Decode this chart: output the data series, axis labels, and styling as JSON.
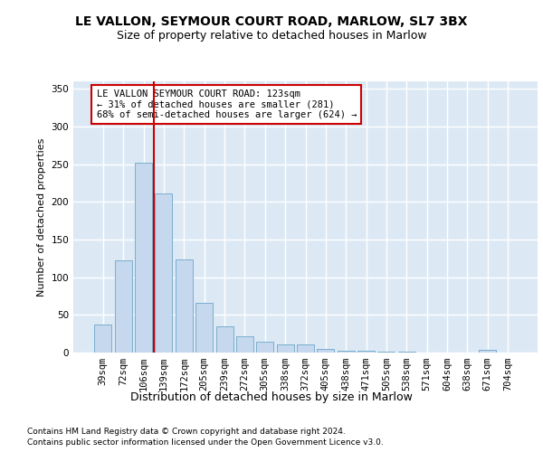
{
  "title1": "LE VALLON, SEYMOUR COURT ROAD, MARLOW, SL7 3BX",
  "title2": "Size of property relative to detached houses in Marlow",
  "xlabel": "Distribution of detached houses by size in Marlow",
  "ylabel": "Number of detached properties",
  "categories": [
    "39sqm",
    "72sqm",
    "106sqm",
    "139sqm",
    "172sqm",
    "205sqm",
    "239sqm",
    "272sqm",
    "305sqm",
    "338sqm",
    "372sqm",
    "405sqm",
    "438sqm",
    "471sqm",
    "505sqm",
    "538sqm",
    "571sqm",
    "604sqm",
    "638sqm",
    "671sqm",
    "704sqm"
  ],
  "values": [
    37,
    122,
    252,
    211,
    124,
    66,
    35,
    22,
    15,
    11,
    11,
    5,
    2,
    2,
    1,
    1,
    0,
    0,
    0,
    4,
    0
  ],
  "bar_color": "#c5d8ed",
  "bar_edge_color": "#7aaecd",
  "vline_x": 2.5,
  "vline_color": "#cc0000",
  "annotation_text": "LE VALLON SEYMOUR COURT ROAD: 123sqm\n← 31% of detached houses are smaller (281)\n68% of semi-detached houses are larger (624) →",
  "annotation_box_color": "#ffffff",
  "annotation_box_edge_color": "#cc0000",
  "ylim": [
    0,
    360
  ],
  "yticks": [
    0,
    50,
    100,
    150,
    200,
    250,
    300,
    350
  ],
  "footer1": "Contains HM Land Registry data © Crown copyright and database right 2024.",
  "footer2": "Contains public sector information licensed under the Open Government Licence v3.0.",
  "fig_bg_color": "#ffffff",
  "plot_bg_color": "#dce9f5",
  "grid_color": "#ffffff",
  "title1_fontsize": 10,
  "title2_fontsize": 9,
  "xlabel_fontsize": 9,
  "ylabel_fontsize": 8,
  "tick_fontsize": 7.5,
  "footer_fontsize": 6.5,
  "annotation_fontsize": 7.5
}
